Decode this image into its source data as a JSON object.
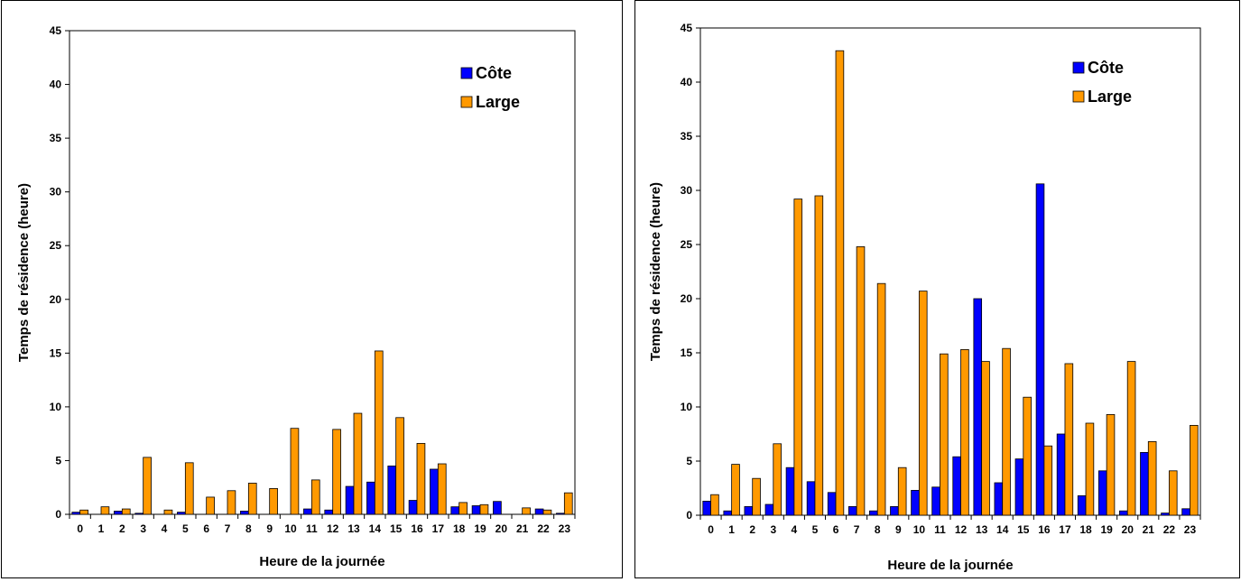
{
  "chart_data": [
    {
      "type": "bar",
      "xlabel": "Heure de la journée",
      "ylabel": "Temps de résidence (heure)",
      "ylim": [
        0,
        45
      ],
      "yticks": [
        0,
        5,
        10,
        15,
        20,
        25,
        30,
        35,
        40,
        45
      ],
      "categories": [
        "0",
        "1",
        "2",
        "3",
        "4",
        "5",
        "6",
        "7",
        "8",
        "9",
        "10",
        "11",
        "12",
        "13",
        "14",
        "15",
        "16",
        "17",
        "18",
        "19",
        "20",
        "21",
        "22",
        "23"
      ],
      "legend_position": "top-right",
      "series": [
        {
          "name": "Côte",
          "color": "#0000ff",
          "values": [
            0.2,
            0,
            0.3,
            0.1,
            0,
            0.2,
            0,
            0,
            0.3,
            0,
            0,
            0.5,
            0.4,
            2.6,
            3.0,
            4.5,
            1.3,
            4.2,
            0.7,
            0.8,
            1.2,
            0,
            0.5,
            0.1
          ]
        },
        {
          "name": "Large",
          "color": "#ff9900",
          "values": [
            0.4,
            0.7,
            0.5,
            5.3,
            0.4,
            4.8,
            1.6,
            2.2,
            2.9,
            2.4,
            8.0,
            3.2,
            7.9,
            9.4,
            15.2,
            9.0,
            6.6,
            4.7,
            1.1,
            0.9,
            0,
            0.6,
            0.4,
            2.0
          ]
        }
      ]
    },
    {
      "type": "bar",
      "xlabel": "Heure de la journée",
      "ylabel": "Temps de résidence (heure)",
      "ylim": [
        0,
        45
      ],
      "yticks": [
        0,
        5,
        10,
        15,
        20,
        25,
        30,
        35,
        40,
        45
      ],
      "categories": [
        "0",
        "1",
        "2",
        "3",
        "4",
        "5",
        "6",
        "7",
        "8",
        "9",
        "10",
        "11",
        "12",
        "13",
        "14",
        "15",
        "16",
        "17",
        "18",
        "19",
        "20",
        "21",
        "22",
        "23"
      ],
      "legend_position": "top-right",
      "series": [
        {
          "name": "Côte",
          "color": "#0000ff",
          "values": [
            1.3,
            0.4,
            0.8,
            1.0,
            4.4,
            3.1,
            2.1,
            0.8,
            0.4,
            0.8,
            2.3,
            2.6,
            5.4,
            20.0,
            3.0,
            5.2,
            30.6,
            7.5,
            1.8,
            4.1,
            0.4,
            5.8,
            0.2,
            0.6
          ]
        },
        {
          "name": "Large",
          "color": "#ff9900",
          "values": [
            1.9,
            4.7,
            3.4,
            6.6,
            29.2,
            29.5,
            42.9,
            24.8,
            21.4,
            4.4,
            20.7,
            14.9,
            15.3,
            14.2,
            15.4,
            10.9,
            6.4,
            14.0,
            8.5,
            9.3,
            14.2,
            6.8,
            4.1,
            8.3
          ]
        }
      ]
    }
  ]
}
